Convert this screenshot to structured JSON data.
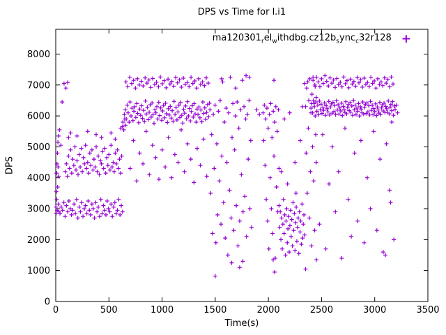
{
  "chart_data": {
    "type": "scatter",
    "title": "DPS vs Time for l.i1",
    "xlabel": "Time(s)",
    "ylabel": "DPS",
    "xlim": [
      0,
      3500
    ],
    "ylim": [
      0,
      8800
    ],
    "xticks": [
      0,
      500,
      1000,
      1500,
      2000,
      2500,
      3000,
      3500
    ],
    "yticks": [
      0,
      1000,
      2000,
      3000,
      4000,
      5000,
      6000,
      7000,
      8000
    ],
    "grid": false,
    "legend_position": "top-right-inside",
    "series_name": "ma120301_rel_withdbg.cz12b_sync_c32r128",
    "legend_segments": [
      {
        "t": "ma120301",
        "sub": false
      },
      {
        "t": "r",
        "sub": true
      },
      {
        "t": "el",
        "sub": false
      },
      {
        "t": "w",
        "sub": true
      },
      {
        "t": "ithdbg.cz12b",
        "sub": false
      },
      {
        "t": "s",
        "sub": true
      },
      {
        "t": "ync",
        "sub": false
      },
      {
        "t": "c",
        "sub": true
      },
      {
        "t": "32r128",
        "sub": false
      }
    ],
    "marker": "plus",
    "colors": {
      "marker": "#9400d3",
      "text": "#000000",
      "background": "#ffffff"
    },
    "runs": [
      {
        "t0": 2,
        "dt": 2,
        "ys": [
          3050,
          2850,
          3550,
          4150,
          3300,
          4450,
          2950,
          4800,
          3700,
          5150,
          4350,
          3150,
          5350,
          4050,
          2900
        ]
      },
      {
        "pts": [
          [
            60,
            6450
          ],
          [
            78,
            7050
          ],
          [
            96,
            6900
          ],
          [
            112,
            7080
          ],
          [
            35,
            5550
          ],
          [
            48,
            5050
          ],
          [
            120,
            5300
          ]
        ]
      },
      {
        "t0": 40,
        "dt": 12,
        "ys": [
          2850,
          3050,
          2950,
          3200,
          2750,
          3100,
          2900,
          3250,
          3000,
          2800,
          2950,
          3150,
          2850,
          3300,
          2700,
          3050,
          2900,
          3200,
          2750,
          3000,
          3100,
          2850,
          3250,
          2950,
          2800,
          3150,
          3000,
          2700,
          3200,
          2900,
          3050,
          2750,
          3300,
          2850,
          3100,
          2950,
          2800,
          3250,
          3000,
          2900,
          3150,
          2750,
          3050,
          3200,
          2850,
          2950,
          3300,
          2800,
          3100,
          2900
        ]
      },
      {
        "t0": 90,
        "dt": 10,
        "ys": [
          4200,
          4450,
          4050,
          4700,
          4300,
          4900,
          4150,
          4600,
          4400,
          5000,
          4250,
          4550,
          4100,
          4750,
          4350,
          4950,
          4200,
          4650,
          4450,
          5050,
          4300,
          4500,
          4150,
          4800,
          4400,
          4900,
          4250,
          4600,
          4350,
          5000,
          4200,
          4700,
          4100,
          4550,
          4450,
          4850,
          4300,
          4950,
          4150,
          4650,
          4400,
          4750,
          4250,
          5050,
          4350,
          4500,
          4200,
          4800,
          4450,
          4900,
          4300,
          4600,
          4150,
          4700
        ]
      },
      {
        "pts": [
          [
            140,
            5450
          ],
          [
            200,
            5350
          ],
          [
            300,
            5500
          ],
          [
            430,
            5300
          ],
          [
            520,
            5450
          ],
          [
            560,
            5250
          ],
          [
            610,
            5600
          ],
          [
            380,
            5400
          ]
        ]
      },
      {
        "pts": [
          [
            625,
            5650
          ],
          [
            632,
            5800
          ],
          [
            640,
            5550
          ],
          [
            648,
            5900
          ],
          [
            655,
            5700
          ]
        ]
      },
      {
        "t0": 645,
        "dt": 9,
        "ys": [
          6050,
          6200,
          5900,
          6350,
          6100,
          5800,
          6450,
          6000,
          6250,
          5850,
          6150,
          6300,
          5950,
          6400,
          6080,
          5780,
          6220,
          6020,
          6330,
          5920,
          6180,
          5820,
          6480,
          6060,
          6280,
          5880,
          6120,
          6360,
          5960,
          6420,
          6040,
          5760,
          6200,
          6100,
          6300,
          5900,
          6440,
          6010,
          6260,
          5860,
          6160,
          6340,
          5940,
          6410,
          6070,
          5790,
          6230,
          6030,
          6310,
          5930,
          6170,
          5830,
          6470,
          6050,
          6270,
          5870,
          6130,
          6350,
          5950,
          6430,
          6020,
          5770,
          6210,
          6090,
          6320,
          5910,
          6460,
          6000,
          6240,
          5840,
          6140,
          6330,
          5960,
          6400,
          6060,
          5800,
          6220,
          6040,
          6290,
          5940,
          6190,
          5810,
          6450,
          6080,
          6260,
          5890,
          6110,
          6370,
          5970,
          6410
        ]
      },
      {
        "t0": 660,
        "dt": 18,
        "ys": [
          7100,
          6950,
          7250,
          7050,
          7150,
          6900,
          7200,
          7000,
          7120,
          6970,
          7230,
          7060,
          7160,
          6920,
          7210,
          7010,
          7090,
          6940,
          7260,
          7040,
          7140,
          6910,
          7190,
          7030,
          7110,
          6960,
          7240,
          7070,
          7170,
          6930,
          7220,
          7020,
          7080,
          6950,
          7250,
          7050,
          7130,
          6900,
          7200,
          7010,
          7100,
          6980,
          7230,
          7060
        ]
      },
      {
        "t0": 700,
        "dt": 30,
        "ys": [
          4300,
          5200,
          3900,
          4800,
          4450,
          5500,
          4100,
          5050,
          4650,
          3950,
          4900,
          4350,
          5300,
          4000,
          4750,
          4500,
          5550,
          4200,
          5100,
          4600,
          3850,
          4950,
          4400,
          5250,
          4050
        ]
      },
      {
        "t0": 1450,
        "dt": 8,
        "ys": [
          6200,
          3500,
          5400,
          2200,
          6050,
          4300,
          6350,
          1900,
          5100,
          2800,
          6150,
          3900,
          6500,
          2500,
          4700,
          7100,
          3200,
          5800,
          2050,
          6250,
          4500,
          1500,
          6100,
          3600,
          7250,
          2700,
          5300,
          6400,
          2300,
          4900,
          6000,
          3100,
          6450,
          1800,
          5600,
          2600,
          6200,
          4100,
          7150,
          2900,
          6300,
          3400,
          5900,
          2100,
          6050,
          4600,
          6500,
          3000,
          5200,
          2400
        ]
      },
      {
        "pts": [
          [
            1500,
            820
          ],
          [
            1655,
            1250
          ],
          [
            1730,
            1100
          ],
          [
            1760,
            1300
          ],
          [
            1790,
            7300
          ],
          [
            1820,
            7250
          ],
          [
            1692,
            6900
          ],
          [
            1560,
            7200
          ],
          [
            1890,
            6200
          ],
          [
            1915,
            6050
          ],
          [
            2045,
            1350
          ],
          [
            2052,
            7150
          ],
          [
            2058,
            950
          ],
          [
            2350,
            1050
          ],
          [
            2452,
            1350
          ],
          [
            3100,
            1500
          ]
        ]
      },
      {
        "t0": 1950,
        "dt": 6,
        "ys": [
          6100,
          5200,
          6350,
          4400,
          5900,
          3300,
          6250,
          2600,
          5600,
          1700,
          6050,
          4000,
          6400,
          3000,
          5300,
          2200,
          6150,
          4700,
          5800,
          1400,
          6300,
          3700,
          5500,
          2900,
          6200,
          4300
        ]
      },
      {
        "t0": 2100,
        "dt": 6,
        "ys": [
          3100,
          2400,
          2900,
          2000,
          2700,
          1700,
          2500,
          3300,
          2200,
          2800,
          1500,
          2600,
          3000,
          1900,
          2350,
          2750,
          1600,
          2450,
          2950,
          2100,
          2650,
          1800,
          3200,
          2300,
          2850,
          1650,
          2550,
          3050,
          1950,
          2400,
          2700,
          1550,
          2900,
          2250,
          2600,
          1850,
          3150,
          2050,
          2500,
          2800,
          2150
        ]
      },
      {
        "pts": [
          [
            2150,
            5900
          ],
          [
            2200,
            6100
          ],
          [
            2250,
            4500
          ],
          [
            2300,
            5200
          ],
          [
            2320,
            6300
          ],
          [
            2180,
            3800
          ],
          [
            2340,
            7050
          ],
          [
            2120,
            4200
          ],
          [
            2260,
            3500
          ]
        ]
      },
      {
        "t0": 2350,
        "dt": 5,
        "ys": [
          6300,
          4800,
          6900,
          3500,
          7100,
          5600,
          6500,
          2700,
          7200,
          4200,
          6100,
          1800,
          6700,
          5000,
          7250,
          3900,
          6400,
          2300,
          6950,
          5400,
          6600
        ]
      },
      {
        "t0": 2400,
        "dt": 8,
        "ys": [
          6250,
          6400,
          6100,
          6500,
          6300,
          6000,
          6450,
          6150,
          6350,
          6050,
          6480,
          6200,
          6380,
          6080,
          6280,
          6180,
          6420,
          6020,
          6330,
          6230,
          6130,
          6470,
          6030,
          6290,
          6390,
          6090,
          6440,
          6140,
          6340,
          6040,
          6490,
          6190,
          6360,
          6060,
          6260,
          6160,
          6410,
          6010,
          6310,
          6210,
          6110,
          6460,
          6070,
          6270,
          6370,
          6170,
          6430,
          6120,
          6320,
          6020,
          6500,
          6200,
          6350,
          6050,
          6250,
          6150,
          6400,
          6000,
          6300,
          6220,
          6100,
          6450,
          6060,
          6280,
          6380,
          6080,
          6420,
          6130,
          6330,
          6030,
          6470,
          6180,
          6340,
          6040,
          6240,
          6140,
          6390,
          6010,
          6290,
          6190,
          6090,
          6440,
          6050,
          6260,
          6360,
          6160,
          6410,
          6110,
          6310,
          6230,
          6120,
          6480,
          6070,
          6270,
          6370,
          6170,
          6460,
          6020,
          6320,
          6210
        ]
      },
      {
        "t0": 2420,
        "dt": 16,
        "ys": [
          7150,
          7000,
          7250,
          7100,
          6950,
          7200,
          7050,
          7300,
          7120,
          6970,
          7230,
          7060,
          7160,
          6920,
          7210,
          7010,
          7090,
          6940,
          7260,
          7040,
          7140,
          6910,
          7190,
          7030,
          7110,
          6960,
          7240,
          7070,
          7170,
          6930,
          7220,
          7020,
          7080,
          6950,
          7250,
          7050,
          7130,
          6900,
          7200,
          7010,
          7100,
          6980,
          7230,
          7060,
          7180,
          6940,
          7260,
          7030
        ]
      },
      {
        "t0": 2450,
        "dt": 30,
        "ys": [
          4500,
          2500,
          5400,
          1700,
          3800,
          5000,
          2900,
          4200,
          1400,
          5600,
          3300,
          2100,
          4800,
          2600,
          5200,
          1900,
          4000,
          3000,
          5500,
          2300,
          4600,
          1600,
          5100,
          3600
        ]
      },
      {
        "pts": [
          [
            3205,
            6350
          ],
          [
            3215,
            6100
          ],
          [
            3160,
            5800
          ],
          [
            3180,
            2000
          ],
          [
            3150,
            3200
          ]
        ]
      }
    ]
  }
}
